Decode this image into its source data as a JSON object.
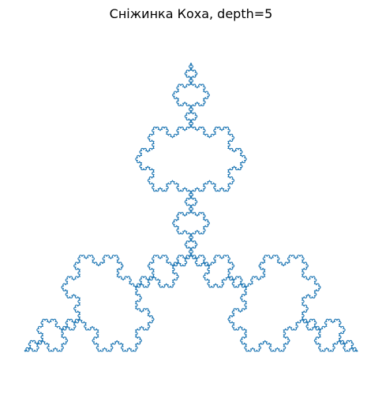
{
  "figure": {
    "title": "Сніжинка Коха, depth=5",
    "line_color": "#1f77b4",
    "background": "#ffffff",
    "depth": 5
  }
}
